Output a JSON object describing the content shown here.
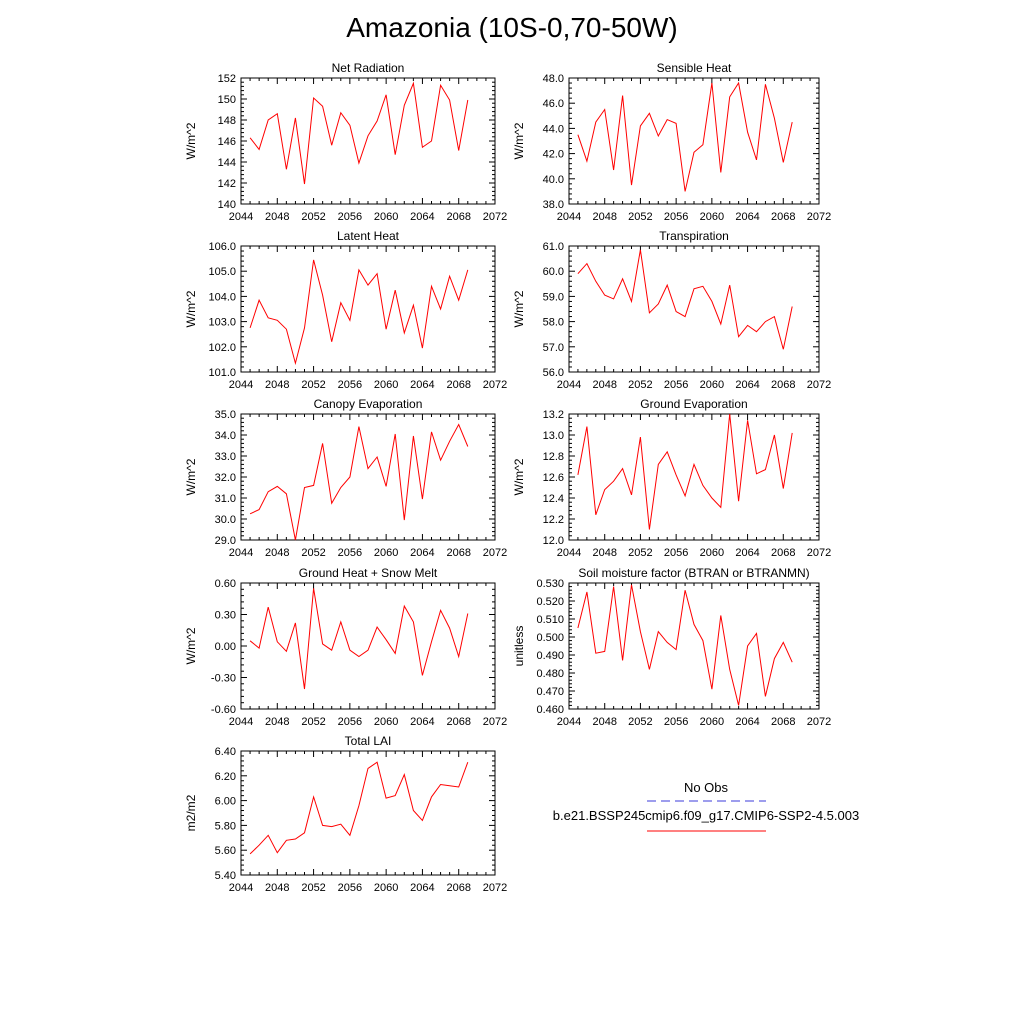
{
  "page": {
    "title": "Amazonia (10S-0,70-50W)"
  },
  "legend": {
    "obs_label": "No Obs",
    "obs_color": "#3b3bdb",
    "model_label": "b.e21.BSSP245cmip6.f09_g17.CMIP6-SSP2-4.5.003",
    "model_color": "#ff0000"
  },
  "chart_data": [
    {
      "type": "line",
      "title": "Net Radiation",
      "ylabel": "W/m^2",
      "xlim": [
        2044,
        2072
      ],
      "ylim": [
        140,
        152
      ],
      "xticks": [
        2044,
        2048,
        2052,
        2056,
        2060,
        2064,
        2068,
        2072
      ],
      "yticks": [
        "140",
        "142",
        "144",
        "146",
        "148",
        "150",
        "152"
      ],
      "series": [
        {
          "color": "#ff0000",
          "x": [
            2045,
            2046,
            2047,
            2048,
            2049,
            2050,
            2051,
            2052,
            2053,
            2054,
            2055,
            2056,
            2057,
            2058,
            2059,
            2060,
            2061,
            2062,
            2063,
            2064,
            2065,
            2066,
            2067,
            2068,
            2069
          ],
          "values": [
            146.3,
            145.2,
            148.0,
            148.6,
            143.3,
            148.2,
            141.9,
            150.1,
            149.3,
            145.6,
            148.7,
            147.5,
            143.9,
            146.5,
            147.9,
            150.4,
            144.7,
            149.4,
            151.5,
            145.4,
            146.0,
            151.3,
            149.9,
            145.1,
            149.9
          ]
        }
      ]
    },
    {
      "type": "line",
      "title": "Sensible Heat",
      "ylabel": "W/m^2",
      "xlim": [
        2044,
        2072
      ],
      "ylim": [
        38,
        48
      ],
      "xticks": [
        2044,
        2048,
        2052,
        2056,
        2060,
        2064,
        2068,
        2072
      ],
      "yticks": [
        "38.0",
        "40.0",
        "42.0",
        "44.0",
        "46.0",
        "48.0"
      ],
      "series": [
        {
          "color": "#ff0000",
          "x": [
            2045,
            2046,
            2047,
            2048,
            2049,
            2050,
            2051,
            2052,
            2053,
            2054,
            2055,
            2056,
            2057,
            2058,
            2059,
            2060,
            2061,
            2062,
            2063,
            2064,
            2065,
            2066,
            2067,
            2068,
            2069
          ],
          "values": [
            43.5,
            41.4,
            44.5,
            45.5,
            40.7,
            46.6,
            39.5,
            44.2,
            45.2,
            43.4,
            44.7,
            44.4,
            39.0,
            42.1,
            42.7,
            47.6,
            40.5,
            46.5,
            47.6,
            43.7,
            41.5,
            47.5,
            44.8,
            41.3,
            44.5
          ]
        }
      ]
    },
    {
      "type": "line",
      "title": "Latent Heat",
      "ylabel": "W/m^2",
      "xlim": [
        2044,
        2072
      ],
      "ylim": [
        101,
        106
      ],
      "xticks": [
        2044,
        2048,
        2052,
        2056,
        2060,
        2064,
        2068,
        2072
      ],
      "yticks": [
        "101.0",
        "102.0",
        "103.0",
        "104.0",
        "105.0",
        "106.0"
      ],
      "series": [
        {
          "color": "#ff0000",
          "x": [
            2045,
            2046,
            2047,
            2048,
            2049,
            2050,
            2051,
            2052,
            2053,
            2054,
            2055,
            2056,
            2057,
            2058,
            2059,
            2060,
            2061,
            2062,
            2063,
            2064,
            2065,
            2066,
            2067,
            2068,
            2069
          ],
          "values": [
            102.75,
            103.85,
            103.15,
            103.05,
            102.7,
            101.35,
            102.75,
            105.45,
            104.05,
            102.2,
            103.75,
            103.05,
            105.05,
            104.45,
            104.9,
            102.7,
            104.25,
            102.55,
            103.65,
            101.95,
            104.4,
            103.5,
            104.8,
            103.85,
            105.05
          ]
        }
      ]
    },
    {
      "type": "line",
      "title": "Transpiration",
      "ylabel": "W/m^2",
      "xlim": [
        2044,
        2072
      ],
      "ylim": [
        56,
        61
      ],
      "xticks": [
        2044,
        2048,
        2052,
        2056,
        2060,
        2064,
        2068,
        2072
      ],
      "yticks": [
        "56.0",
        "57.0",
        "58.0",
        "59.0",
        "60.0",
        "61.0"
      ],
      "series": [
        {
          "color": "#ff0000",
          "x": [
            2045,
            2046,
            2047,
            2048,
            2049,
            2050,
            2051,
            2052,
            2053,
            2054,
            2055,
            2056,
            2057,
            2058,
            2059,
            2060,
            2061,
            2062,
            2063,
            2064,
            2065,
            2066,
            2067,
            2068,
            2069
          ],
          "values": [
            59.9,
            60.3,
            59.6,
            59.05,
            58.9,
            59.7,
            58.8,
            60.85,
            58.35,
            58.7,
            59.45,
            58.4,
            58.2,
            59.3,
            59.4,
            58.8,
            57.9,
            59.45,
            57.4,
            57.85,
            57.6,
            58.0,
            58.2,
            56.9,
            58.6
          ]
        }
      ]
    },
    {
      "type": "line",
      "title": "Canopy Evaporation",
      "ylabel": "W/m^2",
      "xlim": [
        2044,
        2072
      ],
      "ylim": [
        29,
        35
      ],
      "xticks": [
        2044,
        2048,
        2052,
        2056,
        2060,
        2064,
        2068,
        2072
      ],
      "yticks": [
        "29.0",
        "30.0",
        "31.0",
        "32.0",
        "33.0",
        "34.0",
        "35.0"
      ],
      "series": [
        {
          "color": "#ff0000",
          "x": [
            2045,
            2046,
            2047,
            2048,
            2049,
            2050,
            2051,
            2052,
            2053,
            2054,
            2055,
            2056,
            2057,
            2058,
            2059,
            2060,
            2061,
            2062,
            2063,
            2064,
            2065,
            2066,
            2067,
            2068,
            2069
          ],
          "values": [
            30.25,
            30.45,
            31.3,
            31.55,
            31.2,
            29.0,
            31.5,
            31.6,
            33.6,
            30.75,
            31.5,
            32.0,
            34.4,
            32.4,
            32.95,
            31.55,
            34.05,
            29.95,
            33.95,
            30.95,
            34.15,
            32.8,
            33.7,
            34.5,
            33.45
          ]
        }
      ]
    },
    {
      "type": "line",
      "title": "Ground Evaporation",
      "ylabel": "W/m^2",
      "xlim": [
        2044,
        2072
      ],
      "ylim": [
        12,
        13.2
      ],
      "xticks": [
        2044,
        2048,
        2052,
        2056,
        2060,
        2064,
        2068,
        2072
      ],
      "yticks": [
        "12.0",
        "12.2",
        "12.4",
        "12.6",
        "12.8",
        "13.0",
        "13.2"
      ],
      "series": [
        {
          "color": "#ff0000",
          "x": [
            2045,
            2046,
            2047,
            2048,
            2049,
            2050,
            2051,
            2052,
            2053,
            2054,
            2055,
            2056,
            2057,
            2058,
            2059,
            2060,
            2061,
            2062,
            2063,
            2064,
            2065,
            2066,
            2067,
            2068,
            2069
          ],
          "values": [
            12.62,
            13.08,
            12.24,
            12.48,
            12.56,
            12.68,
            12.43,
            12.98,
            12.1,
            12.72,
            12.84,
            12.62,
            12.42,
            12.72,
            12.52,
            12.4,
            12.31,
            13.2,
            12.37,
            13.14,
            12.63,
            12.67,
            13.0,
            12.49,
            13.02
          ]
        }
      ]
    },
    {
      "type": "line",
      "title": "Ground Heat + Snow Melt",
      "ylabel": "W/m^2",
      "xlim": [
        2044,
        2072
      ],
      "ylim": [
        -0.6,
        0.6
      ],
      "xticks": [
        2044,
        2048,
        2052,
        2056,
        2060,
        2064,
        2068,
        2072
      ],
      "yticks": [
        "-0.60",
        "-0.30",
        "0.00",
        "0.30",
        "0.60"
      ],
      "series": [
        {
          "color": "#ff0000",
          "x": [
            2045,
            2046,
            2047,
            2048,
            2049,
            2050,
            2051,
            2052,
            2053,
            2054,
            2055,
            2056,
            2057,
            2058,
            2059,
            2060,
            2061,
            2062,
            2063,
            2064,
            2065,
            2066,
            2067,
            2068,
            2069
          ],
          "values": [
            0.05,
            -0.02,
            0.37,
            0.04,
            -0.05,
            0.22,
            -0.41,
            0.55,
            0.02,
            -0.04,
            0.23,
            -0.04,
            -0.1,
            -0.04,
            0.18,
            0.06,
            -0.07,
            0.38,
            0.23,
            -0.28,
            0.04,
            0.34,
            0.17,
            -0.1,
            0.31
          ]
        }
      ]
    },
    {
      "type": "line",
      "title": "Soil moisture factor (BTRAN or BTRANMN)",
      "ylabel": "unitless",
      "xlim": [
        2044,
        2072
      ],
      "ylim": [
        0.46,
        0.53
      ],
      "xticks": [
        2044,
        2048,
        2052,
        2056,
        2060,
        2064,
        2068,
        2072
      ],
      "yticks": [
        "0.460",
        "0.470",
        "0.480",
        "0.490",
        "0.500",
        "0.510",
        "0.520",
        "0.530"
      ],
      "series": [
        {
          "color": "#ff0000",
          "x": [
            2045,
            2046,
            2047,
            2048,
            2049,
            2050,
            2051,
            2052,
            2053,
            2054,
            2055,
            2056,
            2057,
            2058,
            2059,
            2060,
            2061,
            2062,
            2063,
            2064,
            2065,
            2066,
            2067,
            2068,
            2069
          ],
          "values": [
            0.505,
            0.525,
            0.491,
            0.492,
            0.528,
            0.487,
            0.529,
            0.503,
            0.482,
            0.503,
            0.497,
            0.493,
            0.526,
            0.507,
            0.498,
            0.471,
            0.512,
            0.482,
            0.462,
            0.495,
            0.502,
            0.467,
            0.488,
            0.497,
            0.486
          ]
        }
      ]
    },
    {
      "type": "line",
      "title": "Total LAI",
      "ylabel": "m2/m2",
      "xlim": [
        2044,
        2072
      ],
      "ylim": [
        5.4,
        6.4
      ],
      "xticks": [
        2044,
        2048,
        2052,
        2056,
        2060,
        2064,
        2068,
        2072
      ],
      "yticks": [
        "5.40",
        "5.60",
        "5.80",
        "6.00",
        "6.20",
        "6.40"
      ],
      "series": [
        {
          "color": "#ff0000",
          "x": [
            2045,
            2046,
            2047,
            2048,
            2049,
            2050,
            2051,
            2052,
            2053,
            2054,
            2055,
            2056,
            2057,
            2058,
            2059,
            2060,
            2061,
            2062,
            2063,
            2064,
            2065,
            2066,
            2067,
            2068,
            2069
          ],
          "values": [
            5.57,
            5.64,
            5.72,
            5.58,
            5.68,
            5.69,
            5.74,
            6.03,
            5.8,
            5.79,
            5.81,
            5.72,
            5.96,
            6.26,
            6.31,
            6.02,
            6.04,
            6.21,
            5.92,
            5.84,
            6.03,
            6.13,
            6.12,
            6.11,
            6.31
          ]
        }
      ]
    }
  ]
}
